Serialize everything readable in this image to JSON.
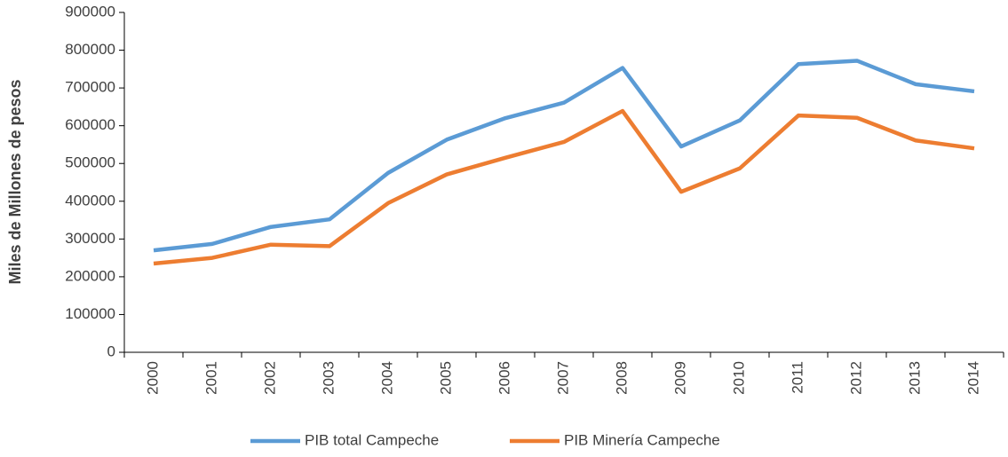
{
  "chart_data": {
    "type": "line",
    "y_label": "Miles de Millones de pesos",
    "categories": [
      "2000",
      "2001",
      "2002",
      "2003",
      "2004",
      "2005",
      "2006",
      "2007",
      "2008",
      "2009",
      "2010",
      "2011",
      "2012",
      "2013",
      "2014"
    ],
    "series": [
      {
        "name": "PIB total Campeche",
        "color": "#5b9bd5",
        "values": [
          270000,
          287000,
          332000,
          352000,
          475000,
          563000,
          620000,
          661000,
          753000,
          545000,
          614000,
          763000,
          772000,
          710000,
          691000
        ]
      },
      {
        "name": "PIB Minería Campeche",
        "color": "#ed7d31",
        "values": [
          235000,
          250000,
          285000,
          281000,
          395000,
          471000,
          515000,
          557000,
          639000,
          425000,
          487000,
          627000,
          621000,
          561000,
          540000
        ]
      }
    ],
    "ylim": [
      0,
      900000
    ],
    "yticks": [
      0,
      100000,
      200000,
      300000,
      400000,
      500000,
      600000,
      700000,
      800000,
      900000
    ],
    "grid": false,
    "legend": "bottom"
  }
}
